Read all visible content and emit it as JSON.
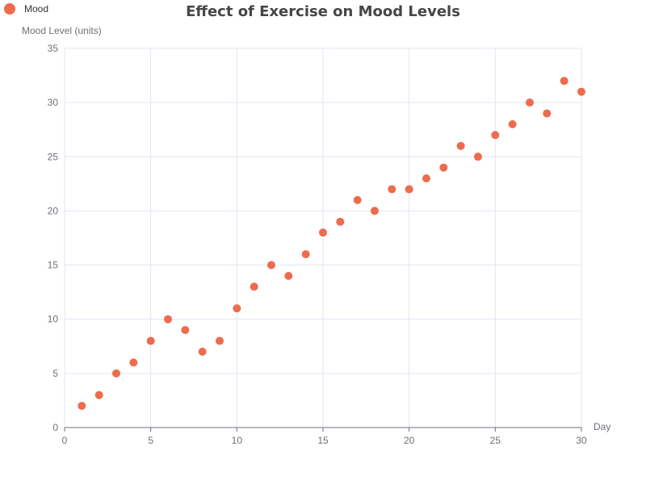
{
  "chart_data": {
    "type": "scatter",
    "title": "Effect of Exercise on Mood Levels",
    "xlabel": "Day",
    "ylabel": "Mood Level (units)",
    "xlim": [
      0,
      30
    ],
    "ylim": [
      0,
      35
    ],
    "x_ticks": [
      0,
      5,
      10,
      15,
      20,
      25,
      30
    ],
    "y_ticks": [
      0,
      5,
      10,
      15,
      20,
      25,
      30,
      35
    ],
    "grid": true,
    "legend_position": "top-left",
    "series": [
      {
        "name": "Mood",
        "color": "#ee6b4d",
        "x": [
          1,
          2,
          3,
          4,
          5,
          6,
          7,
          8,
          9,
          10,
          11,
          12,
          13,
          14,
          15,
          16,
          17,
          18,
          19,
          20,
          21,
          22,
          23,
          24,
          25,
          26,
          27,
          28,
          29,
          30
        ],
        "y": [
          2,
          3,
          5,
          6,
          8,
          10,
          9,
          7,
          8,
          11,
          13,
          15,
          14,
          16,
          18,
          19,
          21,
          20,
          22,
          22,
          23,
          24,
          26,
          25,
          27,
          28,
          30,
          29,
          32,
          31
        ]
      }
    ]
  }
}
